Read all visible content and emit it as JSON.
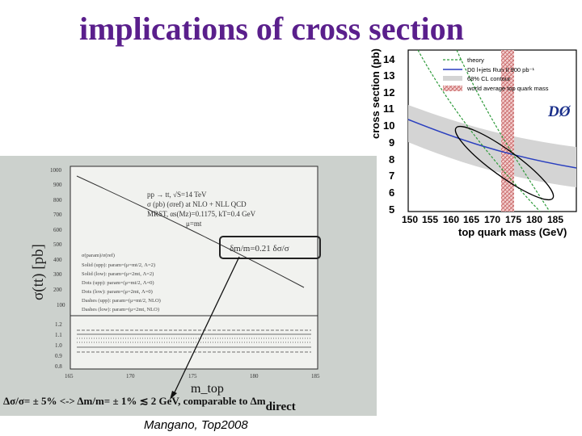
{
  "slide": {
    "title": "implications of cross section",
    "caption": "Mangano, Top2008"
  },
  "right_plot": {
    "ylabel": "cross section (pb)",
    "xlabel": "top quark mass (GeV)",
    "yticks": [
      "14",
      "13",
      "12",
      "11",
      "10",
      "9",
      "8",
      "7",
      "6",
      "5"
    ],
    "xticks": [
      "150",
      "155",
      "160",
      "165",
      "170",
      "175",
      "180",
      "185"
    ],
    "legend": [
      "theory",
      "D0 l+jets Run II 900 pb⁻¹",
      "68% CL contour",
      "world average top quark mass"
    ],
    "logo": "DØ"
  },
  "left_plot": {
    "ylabel": "σ(tt) [pb]",
    "xlabel": "m_top",
    "yticks": [
      "1000",
      "900",
      "800",
      "700",
      "600",
      "500",
      "400",
      "300",
      "200",
      "100"
    ],
    "ratio_ticks": [
      "1.2",
      "1.1",
      "1.0",
      "0.9",
      "0.8"
    ],
    "xticks": [
      "165",
      "170",
      "175",
      "180",
      "185"
    ],
    "header_lines": [
      "pp → tt, √S=14 TeV",
      "σ (pb) (σref) at NLO + NLL QCD",
      "MRST, αs(Mz)=0.1175, kT=0.4 GeV",
      "μ=mt"
    ],
    "legend_lines": [
      "σ(param)/σ(ref)",
      "Solid (upp): param=(μ=mt/2, Λ=2)",
      "Solid (low): param=(μ=2mt, Λ=2)",
      "Dots (upp): param=(μ=mt/2, Λ=0)",
      "Dots (low): param=(μ=2mt, Λ=0)",
      "Dashes (upp): param=(μ=mt/2, NLO)",
      "Dashes (low): param=(μ=2mt, NLO)"
    ],
    "annotation": "δm/m=0.21 δσ/σ",
    "bottom_text": "Δσ/σ= ± 5% <-> Δm/m= ± 1% ≲ 2 GeV, comparable to Δm",
    "bottom_sub": "direct"
  }
}
